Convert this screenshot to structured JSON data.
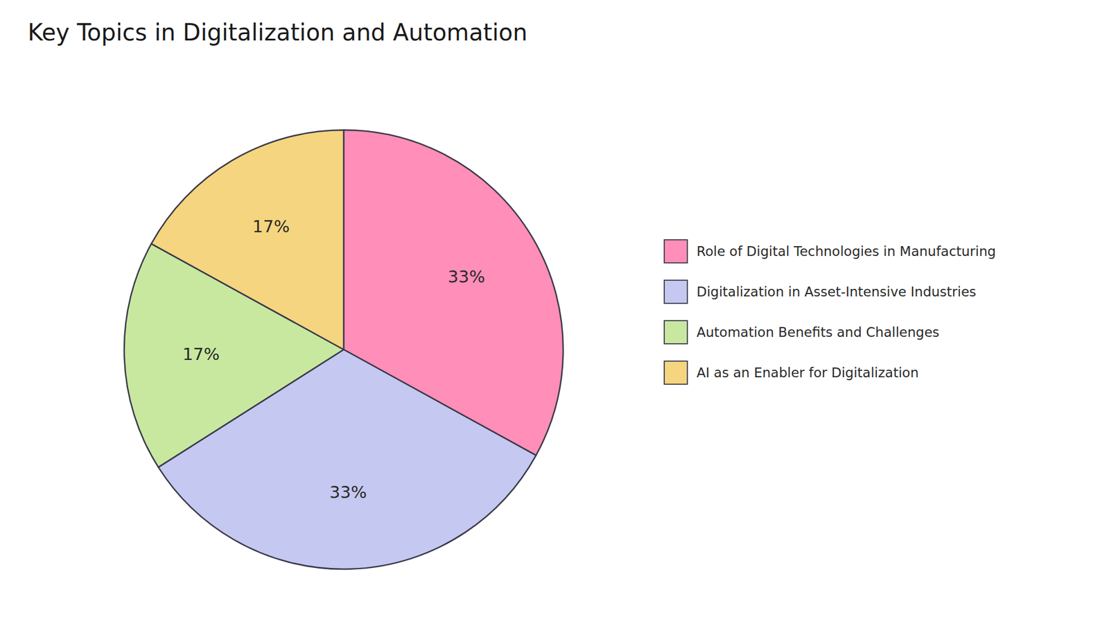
{
  "chart_data": {
    "type": "pie",
    "title": "Key Topics in Digitalization and Automation",
    "categories": [
      "Role of Digital Technologies in Manufacturing",
      "Digitalization in Asset-Intensive Industries",
      "Automation Benefits and Challenges",
      "AI as an Enabler for Digitalization"
    ],
    "values": [
      33,
      33,
      17,
      17
    ],
    "value_labels": [
      "33%",
      "33%",
      "17%",
      "17%"
    ],
    "colors": [
      "#FF8EB8",
      "#C5C8F0",
      "#C8E8A0",
      "#F5D580"
    ],
    "data_labels": true,
    "legend": "right"
  }
}
